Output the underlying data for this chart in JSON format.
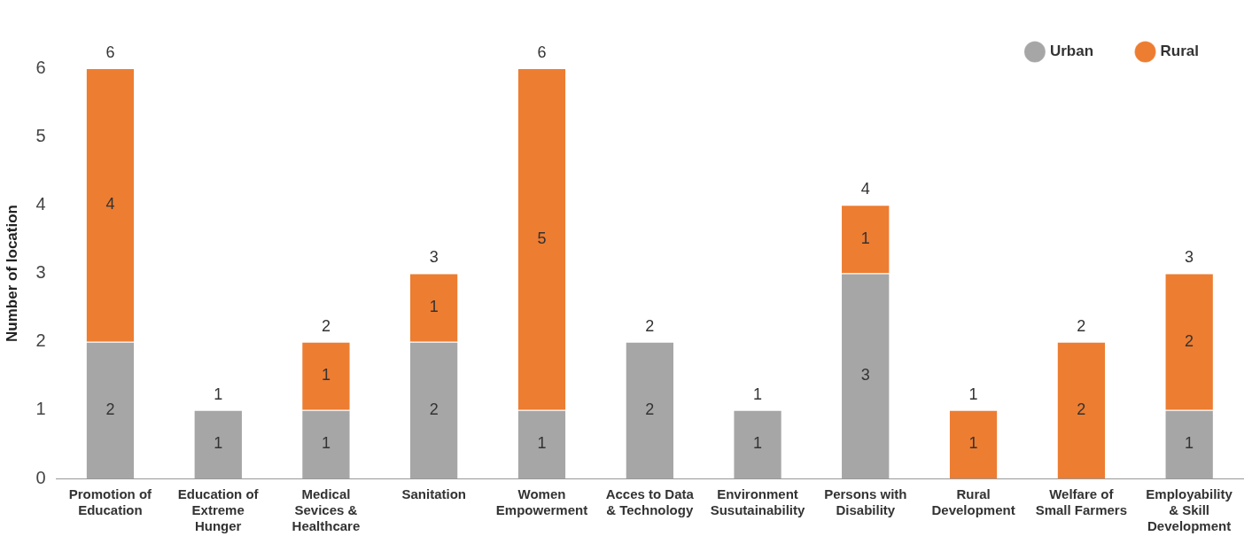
{
  "chart_data": {
    "type": "bar",
    "ylabel": "Number of location",
    "categories": [
      "Promotion of Education",
      "Education of Extreme Hunger",
      "Medical Sevices & Healthcare",
      "Sanitation",
      "Women Empowerment",
      "Acces to Data & Technology",
      "Environment Susutainability",
      "Persons with Disability",
      "Rural Development",
      "Welfare of Small Farmers",
      "Employability & Skill Development"
    ],
    "series": [
      {
        "name": "Urban",
        "color": "#a6a6a6",
        "values": [
          2,
          1,
          1,
          2,
          1,
          2,
          1,
          3,
          0,
          0,
          1
        ],
        "value_labels": [
          "2",
          "1",
          "1",
          "2",
          "1",
          "2",
          "1",
          "3",
          null,
          null,
          "1"
        ]
      },
      {
        "name": "Rural",
        "color": "#ed7d31",
        "values": [
          4,
          0,
          1,
          1,
          5,
          0,
          0,
          1,
          1,
          2,
          2
        ],
        "value_labels": [
          "4",
          null,
          "1",
          "1",
          "5",
          null,
          null,
          "1",
          "1",
          "2",
          "2"
        ]
      }
    ],
    "stacked": true,
    "totals": [
      "6",
      "1",
      "2",
      "3",
      "6",
      "2",
      "1",
      "4",
      "1",
      "2",
      "3"
    ],
    "ylim": [
      0,
      6
    ],
    "yticks": [
      0,
      1,
      2,
      3,
      4,
      5,
      6
    ],
    "legend": "top right"
  }
}
